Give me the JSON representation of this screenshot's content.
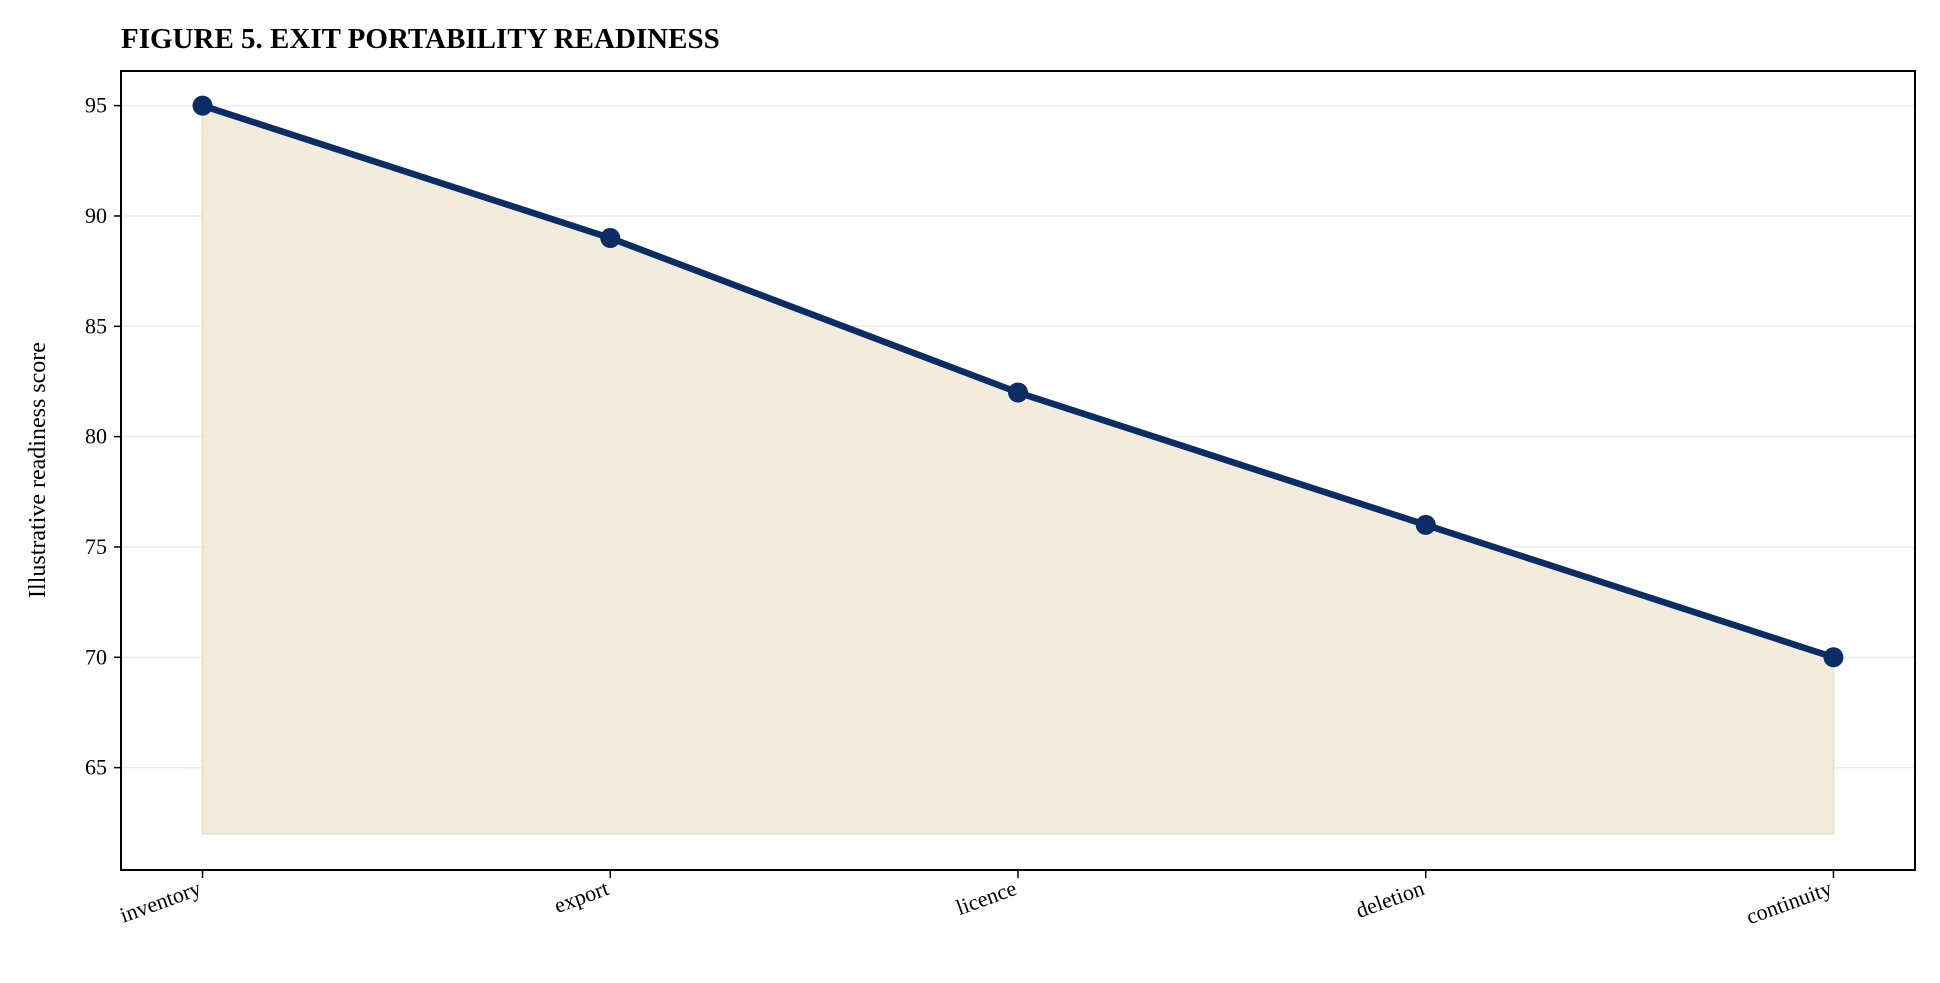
{
  "chart_data": {
    "type": "area_line",
    "title": "FIGURE 5. EXIT PORTABILITY READINESS",
    "y_label": "Illustrative readiness score",
    "categories": [
      "inventory",
      "export",
      "licence",
      "deletion",
      "continuity"
    ],
    "values": [
      95,
      89,
      82,
      76,
      70
    ],
    "color": "#0b2d63",
    "fill_color": "#f3ebdc",
    "fill_to": 62,
    "ylim": [
      60.36,
      96.57
    ],
    "yticks": [
      65,
      70,
      75,
      80,
      85,
      90,
      95
    ],
    "grid": true
  }
}
